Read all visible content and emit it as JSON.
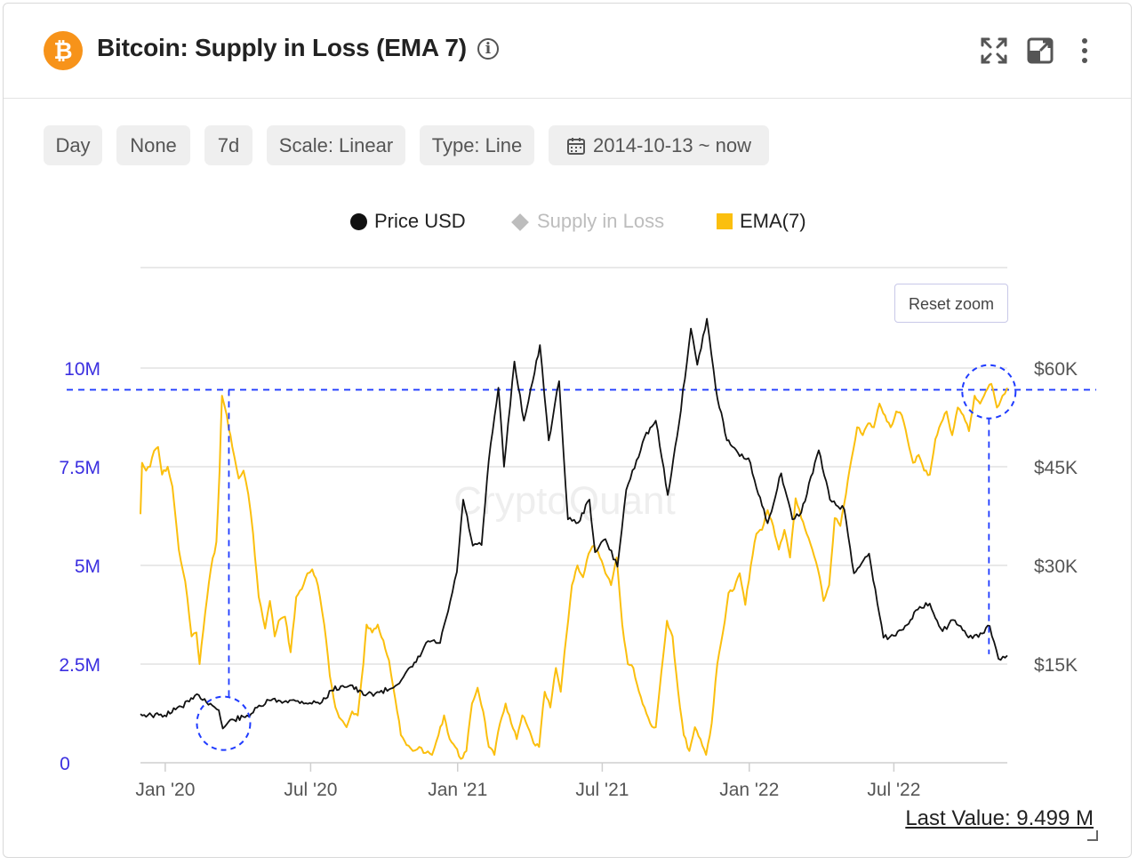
{
  "header": {
    "logo_glyph": "₿",
    "title": "Bitcoin: Supply in Loss (EMA 7)",
    "info_glyph": "i",
    "icons": [
      "fullscreen-icon",
      "popout-icon",
      "more-vert-icon"
    ]
  },
  "toolbar": {
    "chips": [
      "Day",
      "None",
      "7d",
      "Scale: Linear",
      "Type: Line",
      "2014-10-13 ~ now"
    ]
  },
  "legend": {
    "items": [
      {
        "label": "Price USD",
        "color": "#111111",
        "marker": "circle"
      },
      {
        "label": "Supply in Loss",
        "color": "#bdbdbd",
        "marker": "diamond"
      },
      {
        "label": "EMA(7)",
        "color": "#fbbf0e",
        "marker": "square"
      }
    ]
  },
  "reset_zoom_label": "Reset zoom",
  "watermark": "CryptoQuant",
  "last_value": "Last Value: 9.499 M",
  "chart_data": {
    "type": "line",
    "x_tick_labels": [
      "Jan '20",
      "Jul '20",
      "Jan '21",
      "Jul '21",
      "Jan '22",
      "Jul '22"
    ],
    "x_range": [
      "2019-12-01",
      "2022-11-20"
    ],
    "y_left": {
      "ticks": [
        "0",
        "2.5M",
        "5M",
        "7.5M",
        "10M"
      ],
      "range": [
        0,
        10000000
      ]
    },
    "y_right": {
      "ticks": [
        "$15K",
        "$30K",
        "$45K",
        "$60K"
      ],
      "range": [
        0,
        60000
      ]
    },
    "reference_line_left_value": 9450000,
    "series": [
      {
        "name": "EMA(7)",
        "axis": "left",
        "color": "#fbbf0e",
        "points": [
          [
            "2019-12-01",
            6.3
          ],
          [
            "2019-12-03",
            7.6
          ],
          [
            "2019-12-08",
            7.4
          ],
          [
            "2019-12-13",
            7.5
          ],
          [
            "2019-12-18",
            7.9
          ],
          [
            "2019-12-23",
            8.0
          ],
          [
            "2019-12-28",
            7.3
          ],
          [
            "2020-01-04",
            7.5
          ],
          [
            "2020-01-10",
            7.0
          ],
          [
            "2020-01-18",
            5.4
          ],
          [
            "2020-01-26",
            4.6
          ],
          [
            "2020-02-03",
            3.2
          ],
          [
            "2020-02-09",
            3.3
          ],
          [
            "2020-02-13",
            2.5
          ],
          [
            "2020-02-20",
            3.8
          ],
          [
            "2020-02-27",
            4.9
          ],
          [
            "2020-03-05",
            5.6
          ],
          [
            "2020-03-09",
            7.4
          ],
          [
            "2020-03-12",
            9.3
          ],
          [
            "2020-03-18",
            8.8
          ],
          [
            "2020-03-25",
            8.0
          ],
          [
            "2020-04-02",
            7.2
          ],
          [
            "2020-04-08",
            7.4
          ],
          [
            "2020-04-14",
            6.8
          ],
          [
            "2020-04-20",
            5.8
          ],
          [
            "2020-04-27",
            4.2
          ],
          [
            "2020-05-05",
            3.4
          ],
          [
            "2020-05-11",
            4.1
          ],
          [
            "2020-05-17",
            3.2
          ],
          [
            "2020-05-22",
            3.6
          ],
          [
            "2020-05-30",
            3.7
          ],
          [
            "2020-06-06",
            2.8
          ],
          [
            "2020-06-13",
            4.2
          ],
          [
            "2020-06-20",
            4.4
          ],
          [
            "2020-06-27",
            4.8
          ],
          [
            "2020-07-03",
            4.9
          ],
          [
            "2020-07-10",
            4.5
          ],
          [
            "2020-07-18",
            3.5
          ],
          [
            "2020-07-25",
            2.2
          ],
          [
            "2020-08-01",
            1.4
          ],
          [
            "2020-08-08",
            1.1
          ],
          [
            "2020-08-15",
            0.9
          ],
          [
            "2020-08-22",
            1.3
          ],
          [
            "2020-08-29",
            1.2
          ],
          [
            "2020-09-05",
            2.5
          ],
          [
            "2020-09-09",
            3.5
          ],
          [
            "2020-09-16",
            3.3
          ],
          [
            "2020-09-23",
            3.5
          ],
          [
            "2020-09-30",
            3.1
          ],
          [
            "2020-10-07",
            2.6
          ],
          [
            "2020-10-15",
            1.6
          ],
          [
            "2020-10-22",
            0.7
          ],
          [
            "2020-10-29",
            0.45
          ],
          [
            "2020-11-06",
            0.3
          ],
          [
            "2020-11-14",
            0.4
          ],
          [
            "2020-11-22",
            0.25
          ],
          [
            "2020-11-30",
            0.2
          ],
          [
            "2020-12-08",
            0.7
          ],
          [
            "2020-12-15",
            1.2
          ],
          [
            "2020-12-22",
            0.6
          ],
          [
            "2020-12-29",
            0.4
          ],
          [
            "2021-01-05",
            0.1
          ],
          [
            "2021-01-12",
            0.3
          ],
          [
            "2021-01-19",
            1.5
          ],
          [
            "2021-01-26",
            1.9
          ],
          [
            "2021-02-02",
            1.3
          ],
          [
            "2021-02-09",
            0.4
          ],
          [
            "2021-02-16",
            0.2
          ],
          [
            "2021-02-23",
            1.0
          ],
          [
            "2021-03-02",
            1.5
          ],
          [
            "2021-03-09",
            1.0
          ],
          [
            "2021-03-16",
            0.6
          ],
          [
            "2021-03-23",
            1.2
          ],
          [
            "2021-03-30",
            0.9
          ],
          [
            "2021-04-06",
            0.5
          ],
          [
            "2021-04-13",
            0.4
          ],
          [
            "2021-04-20",
            1.8
          ],
          [
            "2021-04-27",
            1.4
          ],
          [
            "2021-05-04",
            2.4
          ],
          [
            "2021-05-10",
            1.8
          ],
          [
            "2021-05-17",
            3.2
          ],
          [
            "2021-05-24",
            4.5
          ],
          [
            "2021-05-31",
            5.0
          ],
          [
            "2021-06-07",
            4.7
          ],
          [
            "2021-06-14",
            5.3
          ],
          [
            "2021-06-21",
            5.5
          ],
          [
            "2021-06-28",
            5.2
          ],
          [
            "2021-07-05",
            4.8
          ],
          [
            "2021-07-12",
            4.5
          ],
          [
            "2021-07-19",
            5.2
          ],
          [
            "2021-07-26",
            3.5
          ],
          [
            "2021-08-02",
            2.5
          ],
          [
            "2021-08-09",
            2.4
          ],
          [
            "2021-08-16",
            1.8
          ],
          [
            "2021-08-23",
            1.4
          ],
          [
            "2021-08-30",
            1.0
          ],
          [
            "2021-09-06",
            0.9
          ],
          [
            "2021-09-13",
            2.3
          ],
          [
            "2021-09-20",
            3.6
          ],
          [
            "2021-09-27",
            3.2
          ],
          [
            "2021-10-04",
            1.8
          ],
          [
            "2021-10-11",
            0.7
          ],
          [
            "2021-10-18",
            0.3
          ],
          [
            "2021-10-25",
            0.9
          ],
          [
            "2021-11-01",
            0.6
          ],
          [
            "2021-11-08",
            0.2
          ],
          [
            "2021-11-15",
            1.0
          ],
          [
            "2021-11-22",
            2.5
          ],
          [
            "2021-11-29",
            3.3
          ],
          [
            "2021-12-06",
            4.3
          ],
          [
            "2021-12-13",
            4.4
          ],
          [
            "2021-12-20",
            4.8
          ],
          [
            "2021-12-27",
            4.0
          ],
          [
            "2022-01-03",
            5.0
          ],
          [
            "2022-01-10",
            5.8
          ],
          [
            "2022-01-17",
            5.9
          ],
          [
            "2022-01-24",
            6.4
          ],
          [
            "2022-01-31",
            6.0
          ],
          [
            "2022-02-07",
            5.4
          ],
          [
            "2022-02-14",
            5.9
          ],
          [
            "2022-02-21",
            5.2
          ],
          [
            "2022-02-28",
            6.7
          ],
          [
            "2022-03-07",
            6.2
          ],
          [
            "2022-03-14",
            5.8
          ],
          [
            "2022-03-21",
            5.4
          ],
          [
            "2022-03-28",
            4.9
          ],
          [
            "2022-04-04",
            4.1
          ],
          [
            "2022-04-11",
            4.5
          ],
          [
            "2022-04-18",
            6.2
          ],
          [
            "2022-04-25",
            6.0
          ],
          [
            "2022-05-02",
            6.8
          ],
          [
            "2022-05-09",
            7.7
          ],
          [
            "2022-05-16",
            8.5
          ],
          [
            "2022-05-23",
            8.3
          ],
          [
            "2022-05-30",
            8.6
          ],
          [
            "2022-06-06",
            8.5
          ],
          [
            "2022-06-13",
            9.1
          ],
          [
            "2022-06-20",
            8.8
          ],
          [
            "2022-06-27",
            8.5
          ],
          [
            "2022-07-04",
            8.9
          ],
          [
            "2022-07-11",
            8.8
          ],
          [
            "2022-07-18",
            8.2
          ],
          [
            "2022-07-25",
            7.6
          ],
          [
            "2022-08-01",
            7.8
          ],
          [
            "2022-08-08",
            7.4
          ],
          [
            "2022-08-15",
            7.3
          ],
          [
            "2022-08-22",
            8.2
          ],
          [
            "2022-08-29",
            8.6
          ],
          [
            "2022-09-05",
            8.9
          ],
          [
            "2022-09-12",
            8.3
          ],
          [
            "2022-09-19",
            9.0
          ],
          [
            "2022-09-26",
            8.8
          ],
          [
            "2022-10-03",
            8.4
          ],
          [
            "2022-10-10",
            9.3
          ],
          [
            "2022-10-17",
            9.1
          ],
          [
            "2022-10-24",
            9.4
          ],
          [
            "2022-10-31",
            9.6
          ],
          [
            "2022-11-07",
            9.0
          ],
          [
            "2022-11-14",
            9.3
          ],
          [
            "2022-11-20",
            9.5
          ]
        ]
      },
      {
        "name": "Price USD",
        "axis": "right",
        "color": "#111111",
        "points": [
          [
            "2019-12-01",
            7400
          ],
          [
            "2019-12-15",
            7200
          ],
          [
            "2019-12-31",
            7200
          ],
          [
            "2020-01-14",
            8100
          ],
          [
            "2020-01-31",
            9300
          ],
          [
            "2020-02-12",
            10300
          ],
          [
            "2020-02-29",
            8700
          ],
          [
            "2020-03-08",
            8000
          ],
          [
            "2020-03-13",
            5200
          ],
          [
            "2020-03-25",
            6600
          ],
          [
            "2020-04-10",
            6900
          ],
          [
            "2020-04-30",
            8600
          ],
          [
            "2020-05-10",
            9500
          ],
          [
            "2020-05-31",
            9400
          ],
          [
            "2020-06-15",
            9400
          ],
          [
            "2020-06-30",
            9100
          ],
          [
            "2020-07-15",
            9200
          ],
          [
            "2020-07-27",
            11000
          ],
          [
            "2020-08-10",
            11700
          ],
          [
            "2020-08-20",
            11800
          ],
          [
            "2020-09-05",
            10300
          ],
          [
            "2020-09-25",
            10700
          ],
          [
            "2020-10-10",
            11300
          ],
          [
            "2020-10-25",
            13000
          ],
          [
            "2020-11-10",
            15300
          ],
          [
            "2020-11-25",
            18500
          ],
          [
            "2020-12-10",
            18200
          ],
          [
            "2020-12-20",
            23000
          ],
          [
            "2020-12-31",
            29000
          ],
          [
            "2021-01-08",
            40000
          ],
          [
            "2021-01-20",
            33000
          ],
          [
            "2021-01-31",
            33100
          ],
          [
            "2021-02-09",
            46000
          ],
          [
            "2021-02-21",
            57000
          ],
          [
            "2021-02-28",
            45000
          ],
          [
            "2021-03-13",
            61000
          ],
          [
            "2021-03-25",
            52000
          ],
          [
            "2021-04-05",
            58000
          ],
          [
            "2021-04-14",
            63500
          ],
          [
            "2021-04-25",
            49000
          ],
          [
            "2021-05-08",
            58000
          ],
          [
            "2021-05-19",
            37000
          ],
          [
            "2021-06-01",
            36500
          ],
          [
            "2021-06-15",
            40000
          ],
          [
            "2021-06-22",
            32000
          ],
          [
            "2021-07-05",
            34000
          ],
          [
            "2021-07-20",
            29800
          ],
          [
            "2021-07-31",
            41500
          ],
          [
            "2021-08-13",
            46000
          ],
          [
            "2021-08-23",
            49500
          ],
          [
            "2021-09-06",
            52000
          ],
          [
            "2021-09-21",
            40700
          ],
          [
            "2021-10-05",
            51500
          ],
          [
            "2021-10-20",
            66000
          ],
          [
            "2021-10-28",
            60500
          ],
          [
            "2021-11-09",
            67500
          ],
          [
            "2021-11-20",
            57000
          ],
          [
            "2021-12-04",
            49000
          ],
          [
            "2021-12-20",
            46600
          ],
          [
            "2021-12-31",
            46300
          ],
          [
            "2022-01-10",
            41800
          ],
          [
            "2022-01-24",
            36400
          ],
          [
            "2022-02-10",
            44000
          ],
          [
            "2022-02-24",
            37000
          ],
          [
            "2022-03-07",
            38000
          ],
          [
            "2022-03-29",
            47500
          ],
          [
            "2022-04-12",
            40000
          ],
          [
            "2022-04-30",
            38500
          ],
          [
            "2022-05-12",
            28800
          ],
          [
            "2022-05-31",
            31800
          ],
          [
            "2022-06-13",
            22500
          ],
          [
            "2022-06-18",
            19000
          ],
          [
            "2022-07-01",
            19300
          ],
          [
            "2022-07-15",
            20800
          ],
          [
            "2022-07-31",
            23300
          ],
          [
            "2022-08-15",
            24200
          ],
          [
            "2022-08-31",
            20000
          ],
          [
            "2022-09-13",
            21700
          ],
          [
            "2022-09-30",
            19400
          ],
          [
            "2022-10-15",
            19100
          ],
          [
            "2022-10-29",
            20800
          ],
          [
            "2022-11-09",
            15800
          ],
          [
            "2022-11-20",
            16300
          ]
        ]
      }
    ],
    "annotations": [
      {
        "type": "circle",
        "date": "2020-03-14",
        "axis": "right",
        "value": 6000,
        "color": "#1f3bff"
      },
      {
        "type": "circle",
        "date": "2022-10-28",
        "axis": "left",
        "value": 9400000,
        "color": "#1f3bff"
      }
    ]
  }
}
